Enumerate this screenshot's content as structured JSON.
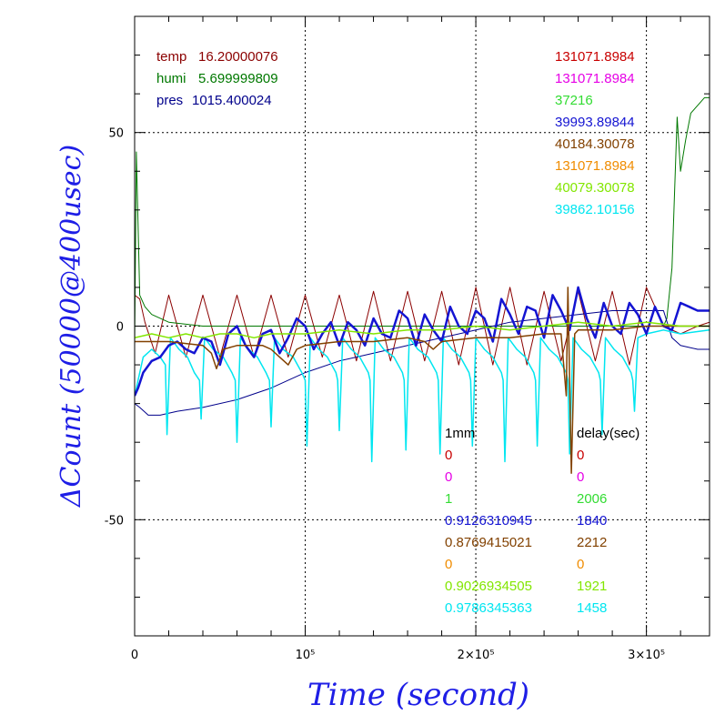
{
  "chart_data": {
    "type": "line",
    "xlabel": "Time (second)",
    "ylabel": "ΔCount (50000@400usec)",
    "xlim": [
      0,
      337000
    ],
    "ylim": [
      -80,
      80
    ],
    "grid": true,
    "x_ticks": [
      {
        "value": 0,
        "label": "0"
      },
      {
        "value": 100000,
        "label": "10⁵"
      },
      {
        "value": 200000,
        "label": "2×10⁵"
      },
      {
        "value": 300000,
        "label": "3×10⁵"
      }
    ],
    "y_ticks": [
      {
        "value": -50,
        "label": "-50"
      },
      {
        "value": 0,
        "label": "0"
      },
      {
        "value": 50,
        "label": "50"
      }
    ],
    "env_legend": [
      {
        "label": "temp",
        "value": "16.20000076",
        "color": "#8b0000"
      },
      {
        "label": "humi",
        "value": "5.699999809",
        "color": "#007800"
      },
      {
        "label": "pres",
        "value": "1015.400024",
        "color": "#00008b"
      }
    ],
    "channel_values": [
      {
        "text": "131071.8984",
        "color": "#c80000"
      },
      {
        "text": "131071.8984",
        "color": "#e600e6"
      },
      {
        "text": "37216",
        "color": "#32dc32"
      },
      {
        "text": "39993.89844",
        "color": "#1414d2"
      },
      {
        "text": "40184.30078",
        "color": "#824100"
      },
      {
        "text": "131071.8984",
        "color": "#f08c00"
      },
      {
        "text": "40079.30078",
        "color": "#82e600"
      },
      {
        "text": "39862.10156",
        "color": "#00e6f0"
      }
    ],
    "table": {
      "col1_header": "1mm",
      "col2_header": "delay(sec)",
      "rows": [
        {
          "col1": "0",
          "col2": "0",
          "color": "#c80000"
        },
        {
          "col1": "0",
          "col2": "0",
          "color": "#e600e6"
        },
        {
          "col1": "1",
          "col2": "2006",
          "color": "#32dc32"
        },
        {
          "col1": "0.9126310945",
          "col2": "1840",
          "color": "#1414d2"
        },
        {
          "col1": "0.8769415021",
          "col2": "2212",
          "color": "#824100"
        },
        {
          "col1": "0",
          "col2": "0",
          "color": "#f08c00"
        },
        {
          "col1": "0.9026934505",
          "col2": "1921",
          "color": "#82e600"
        },
        {
          "col1": "0.9786345363",
          "col2": "1458",
          "color": "#00e6f0"
        }
      ]
    },
    "series": [
      {
        "color": "#8b0000",
        "width": 1,
        "x": [
          0,
          3000,
          6000,
          12000,
          20000,
          30000,
          40000,
          50000,
          60000,
          70000,
          80000,
          90000,
          100000,
          110000,
          120000,
          130000,
          140000,
          150000,
          160000,
          170000,
          180000,
          190000,
          200000,
          210000,
          220000,
          230000,
          240000,
          250000,
          260000,
          270000,
          280000,
          290000,
          300000,
          310000,
          320000,
          330000,
          337000
        ],
        "y": [
          8,
          7,
          1,
          -7,
          8,
          -8,
          8,
          -8,
          8,
          -8,
          8,
          -8,
          8,
          -8,
          8,
          -9,
          9,
          -9,
          9,
          -9,
          9,
          -10,
          10,
          -10,
          10,
          -10,
          9,
          -9,
          9,
          -9,
          9,
          -10,
          10,
          0,
          -2,
          0,
          1
        ]
      },
      {
        "color": "#007800",
        "width": 1,
        "x": [
          0,
          1000,
          3000,
          6000,
          10000,
          20000,
          40000,
          60000,
          80000,
          100000,
          120000,
          140000,
          160000,
          180000,
          200000,
          220000,
          240000,
          260000,
          280000,
          300000,
          310000,
          312000,
          315000,
          318000,
          320000,
          323000,
          326000,
          330000,
          334000,
          337000
        ],
        "y": [
          -5,
          45,
          8,
          5,
          3,
          1,
          0,
          0,
          0,
          0,
          0,
          0,
          0,
          0,
          0,
          0,
          0,
          0,
          0,
          0,
          0,
          2,
          15,
          54,
          40,
          48,
          55,
          57,
          59,
          59
        ]
      },
      {
        "color": "#00008b",
        "width": 1,
        "x": [
          0,
          3000,
          8000,
          15000,
          25000,
          40000,
          60000,
          80000,
          100000,
          120000,
          140000,
          160000,
          180000,
          200000,
          220000,
          240000,
          260000,
          280000,
          300000,
          310000,
          315000,
          320000,
          330000,
          337000
        ],
        "y": [
          -20,
          -21,
          -23,
          -23,
          -22,
          -21,
          -19,
          -16,
          -12,
          -9,
          -7,
          -5,
          -3,
          -1,
          1,
          2,
          3,
          4,
          4,
          4,
          -3,
          -5,
          -6,
          -6
        ]
      },
      {
        "color": "#00e6f0",
        "width": 1.5,
        "x": [
          0,
          5000,
          10000,
          15000,
          18000,
          19000,
          21000,
          26000,
          31000,
          35000,
          38000,
          39000,
          41000,
          46000,
          52000,
          57000,
          59000,
          60000,
          62000,
          67000,
          72000,
          77000,
          79000,
          80000,
          82000,
          87000,
          93000,
          98000,
          100000,
          101000,
          103000,
          108000,
          113000,
          118000,
          119000,
          120000,
          122000,
          127000,
          132000,
          137000,
          138000,
          139000,
          141000,
          146000,
          152000,
          157000,
          158000,
          159000,
          161000,
          166000,
          172000,
          177000,
          178000,
          179000,
          181000,
          186000,
          191000,
          196000,
          197000,
          198000,
          200000,
          205000,
          210000,
          215000,
          216000,
          217000,
          219000,
          224000,
          229000,
          234000,
          235000,
          236000,
          238000,
          243000,
          248000,
          253000,
          254000,
          255000,
          257000,
          262000,
          267000,
          272000,
          273000,
          274000,
          276000,
          281000,
          286000,
          291000,
          292000,
          293000,
          295000,
          300000,
          310000,
          320000,
          337000
        ],
        "y": [
          -18,
          -8,
          -6,
          -8,
          -10,
          -28,
          -3,
          -6,
          -8,
          -12,
          -14,
          -24,
          -3,
          -6,
          -8,
          -12,
          -14,
          -30,
          -3,
          -6,
          -8,
          -12,
          -14,
          -26,
          -3,
          -6,
          -8,
          -12,
          -14,
          -31,
          -3,
          -6,
          -8,
          -12,
          -14,
          -27,
          -3,
          -6,
          -8,
          -12,
          -14,
          -35,
          -3,
          -6,
          -8,
          -12,
          -14,
          -32,
          -3,
          -6,
          -8,
          -12,
          -14,
          -33,
          -3,
          -6,
          -8,
          -12,
          -14,
          -31,
          -3,
          -6,
          -8,
          -12,
          -14,
          -35,
          -3,
          -6,
          -8,
          -12,
          -14,
          -31,
          -3,
          -6,
          -8,
          -12,
          -14,
          -33,
          -3,
          -6,
          -8,
          -12,
          -14,
          -28,
          -3,
          -6,
          -8,
          -12,
          -14,
          -22,
          -3,
          -2,
          -1,
          -2,
          -1
        ]
      },
      {
        "color": "#1414d2",
        "width": 2.5,
        "x": [
          0,
          2000,
          5000,
          10000,
          15000,
          20000,
          25000,
          30000,
          35000,
          40000,
          45000,
          50000,
          55000,
          60000,
          65000,
          70000,
          75000,
          80000,
          85000,
          90000,
          95000,
          100000,
          105000,
          110000,
          115000,
          120000,
          125000,
          130000,
          135000,
          140000,
          145000,
          150000,
          155000,
          160000,
          165000,
          170000,
          175000,
          180000,
          185000,
          190000,
          195000,
          200000,
          205000,
          210000,
          215000,
          220000,
          225000,
          230000,
          235000,
          240000,
          245000,
          250000,
          255000,
          260000,
          265000,
          270000,
          275000,
          280000,
          285000,
          290000,
          295000,
          300000,
          305000,
          310000,
          315000,
          320000,
          325000,
          330000,
          337000
        ],
        "y": [
          -18,
          -16,
          -12,
          -9,
          -8,
          -5,
          -4,
          -6,
          -7,
          -3,
          -4,
          -10,
          -2,
          0,
          -5,
          -8,
          -2,
          -1,
          -7,
          -3,
          2,
          0,
          -6,
          -2,
          1,
          -5,
          1,
          -1,
          -5,
          2,
          -2,
          -3,
          4,
          2,
          -5,
          3,
          -1,
          -4,
          5,
          0,
          -2,
          4,
          2,
          -4,
          7,
          3,
          -2,
          5,
          4,
          -3,
          8,
          4,
          -1,
          10,
          2,
          -3,
          6,
          0,
          -2,
          6,
          3,
          -2,
          5,
          0,
          -1,
          6,
          5,
          4,
          4
        ]
      },
      {
        "color": "#824100",
        "width": 1.5,
        "x": [
          0,
          20000,
          40000,
          45000,
          48000,
          52000,
          60000,
          75000,
          80000,
          85000,
          90000,
          95000,
          100000,
          120000,
          140000,
          160000,
          170000,
          175000,
          180000,
          200000,
          220000,
          240000,
          250000,
          253000,
          254000,
          256000,
          258000,
          260000,
          280000,
          300000,
          320000,
          337000
        ],
        "y": [
          -4,
          -4,
          -5,
          -7,
          -11,
          -6,
          -5,
          -5,
          -6,
          -8,
          -10,
          -6,
          -5,
          -4,
          -4,
          -3,
          -4,
          -6,
          -4,
          -3,
          -3,
          -2,
          -2,
          -18,
          10,
          -38,
          -2,
          -1,
          -1,
          0,
          0,
          0
        ]
      },
      {
        "color": "#82e600",
        "width": 1.5,
        "x": [
          0,
          10000,
          20000,
          30000,
          40000,
          50000,
          60000,
          70000,
          80000,
          90000,
          100000,
          120000,
          140000,
          160000,
          180000,
          200000,
          220000,
          240000,
          260000,
          280000,
          300000,
          320000,
          337000
        ],
        "y": [
          -3,
          -2,
          -3,
          -2,
          -3,
          -2,
          -2,
          -3,
          -2,
          -2,
          -2,
          -1,
          -2,
          -1,
          -1,
          0,
          -1,
          0,
          1,
          0,
          1,
          0,
          0
        ]
      }
    ]
  }
}
